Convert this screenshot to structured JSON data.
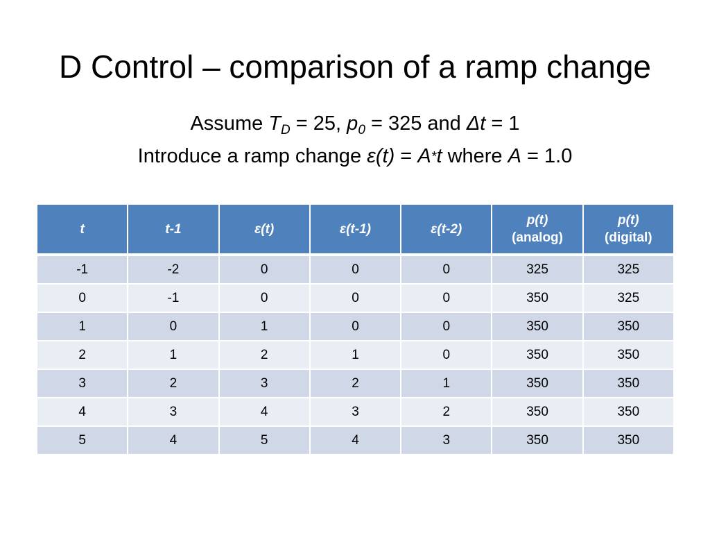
{
  "slide": {
    "title": "D Control – comparison of a ramp change",
    "line1": {
      "p1": "Assume ",
      "TD_symbol": "T",
      "TD_sub": "D",
      "p2": " = 25, ",
      "p0_symbol": "p",
      "p0_sub": "0",
      "p3": " = 325 and ",
      "dt_symbol": "Δt",
      "p4": " = 1"
    },
    "line2": {
      "p1": "Introduce a ramp change  ",
      "eps": "ε(t)",
      "p2": " = ",
      "A1": "A",
      "star": "*",
      "t": "t",
      "p3": " where ",
      "A2": "A",
      "p4": " = 1.0"
    }
  },
  "table": {
    "headers": [
      {
        "label": "t",
        "sub": ""
      },
      {
        "label": "t-1",
        "sub": ""
      },
      {
        "label": "ε(t)",
        "sub": ""
      },
      {
        "label": "ε(t-1)",
        "sub": ""
      },
      {
        "label": "ε(t-2)",
        "sub": ""
      },
      {
        "label": "p(t)",
        "sub": "(analog)"
      },
      {
        "label": "p(t)",
        "sub": "(digital)"
      }
    ],
    "rows": [
      [
        "-1",
        "-2",
        "0",
        "0",
        "0",
        "325",
        "325"
      ],
      [
        "0",
        "-1",
        "0",
        "0",
        "0",
        "350",
        "325"
      ],
      [
        "1",
        "0",
        "1",
        "0",
        "0",
        "350",
        "350"
      ],
      [
        "2",
        "1",
        "2",
        "1",
        "0",
        "350",
        "350"
      ],
      [
        "3",
        "2",
        "3",
        "2",
        "1",
        "350",
        "350"
      ],
      [
        "4",
        "3",
        "4",
        "3",
        "2",
        "350",
        "350"
      ],
      [
        "5",
        "4",
        "5",
        "4",
        "3",
        "350",
        "350"
      ]
    ]
  },
  "colors": {
    "header_bg": "#4f81bd",
    "row_odd_bg": "#d0d8e8",
    "row_even_bg": "#e9edf4"
  }
}
